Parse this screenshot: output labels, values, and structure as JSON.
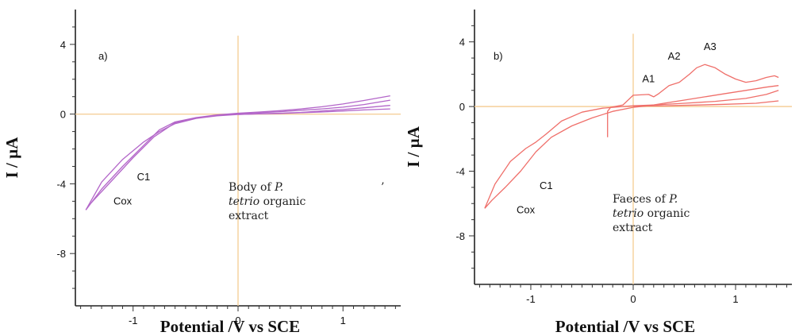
{
  "chart_data": [
    {
      "type": "line",
      "panel_label": "a)",
      "xlabel": "Potential /V vs SCE",
      "ylabel": "I / µA",
      "xlim": [
        -1.55,
        1.55
      ],
      "ylim": [
        -11,
        6
      ],
      "xticks": [
        -1,
        0,
        1
      ],
      "xtick_labels": [
        "-1",
        "0",
        "1"
      ],
      "yticks": [
        4,
        0,
        -4,
        -8
      ],
      "ytick_labels": [
        "4",
        "0",
        "-4",
        "-8"
      ],
      "crosshair_color": "#f5cf9a",
      "series_color": "#b366c9",
      "annotations": [
        {
          "text": "C1",
          "x": -0.9,
          "y": -3.8
        },
        {
          "text": "Cox",
          "x": -1.1,
          "y": -5.2
        }
      ],
      "caption": {
        "line1": "Body of ",
        "italic1": "P.",
        "italic2": "tetrio",
        "line2_rest": " organic",
        "line3": "extract"
      },
      "stray_mark": "’",
      "series": [
        {
          "x": [
            -1.45,
            -1.3,
            -1.1,
            -0.9,
            -0.75,
            -0.6,
            -0.4,
            -0.2,
            0,
            0.2,
            0.4,
            0.6,
            0.8,
            1.0,
            1.2,
            1.45
          ],
          "y": [
            -5.5,
            -4.3,
            -3.0,
            -1.8,
            -0.9,
            -0.45,
            -0.2,
            -0.05,
            0.05,
            0.12,
            0.2,
            0.3,
            0.42,
            0.58,
            0.78,
            1.05
          ]
        },
        {
          "x": [
            1.45,
            1.2,
            1.0,
            0.8,
            0.6,
            0.4,
            0.2,
            0,
            -0.2,
            -0.4,
            -0.6,
            -0.75,
            -0.9,
            -1.1,
            -1.3,
            -1.45
          ],
          "y": [
            0.5,
            0.36,
            0.26,
            0.18,
            0.1,
            0.05,
            0.02,
            -0.02,
            -0.1,
            -0.25,
            -0.55,
            -1.0,
            -1.6,
            -2.6,
            -3.9,
            -5.5
          ]
        },
        {
          "x": [
            -1.4,
            -1.2,
            -1.0,
            -0.8,
            -0.6,
            -0.4,
            -0.2,
            0,
            0.2,
            0.4,
            0.6,
            0.8,
            1.0,
            1.2,
            1.45
          ],
          "y": [
            -5.1,
            -3.8,
            -2.5,
            -1.3,
            -0.5,
            -0.22,
            -0.08,
            0.02,
            0.08,
            0.14,
            0.22,
            0.3,
            0.4,
            0.55,
            0.8
          ]
        },
        {
          "x": [
            1.45,
            1.2,
            1.0,
            0.8,
            0.6,
            0.4,
            0.2,
            0
          ],
          "y": [
            0.3,
            0.24,
            0.18,
            0.12,
            0.08,
            0.04,
            0.01,
            -0.02
          ]
        }
      ]
    },
    {
      "type": "line",
      "panel_label": "b)",
      "xlabel": "Potential /V vs SCE",
      "ylabel": "I / µA",
      "xlim": [
        -1.55,
        1.55
      ],
      "ylim": [
        -11,
        6
      ],
      "xticks": [
        -1,
        0,
        1
      ],
      "xtick_labels": [
        "-1",
        "0",
        "1"
      ],
      "yticks": [
        4,
        0,
        -4,
        -8
      ],
      "ytick_labels": [
        "4",
        "0",
        "-4",
        "-8"
      ],
      "crosshair_color": "#f5cf9a",
      "series_color": "#ef6f6a",
      "annotations": [
        {
          "text": "A1",
          "x": 0.15,
          "y": 1.5
        },
        {
          "text": "A2",
          "x": 0.4,
          "y": 2.9
        },
        {
          "text": "A3",
          "x": 0.75,
          "y": 3.5
        },
        {
          "text": "C1",
          "x": -0.85,
          "y": -5.1
        },
        {
          "text": "Cox",
          "x": -1.05,
          "y": -6.6
        }
      ],
      "caption": {
        "line1": "Faeces of ",
        "italic1": "P.",
        "italic2": "tetrio",
        "line2_rest": " organic",
        "line3": "extract"
      },
      "series": [
        {
          "x": [
            -0.25,
            -0.25,
            -0.22,
            -0.1,
            0,
            0.15,
            0.2,
            0.25,
            0.35,
            0.45,
            0.55,
            0.62,
            0.7,
            0.8,
            0.9,
            1.0,
            1.1,
            1.2,
            1.3,
            1.38,
            1.42
          ],
          "y": [
            -1.9,
            -0.3,
            -0.05,
            0.1,
            0.7,
            0.75,
            0.6,
            0.8,
            1.3,
            1.5,
            2.0,
            2.4,
            2.6,
            2.4,
            2.0,
            1.7,
            1.5,
            1.6,
            1.8,
            1.9,
            1.8
          ]
        },
        {
          "x": [
            1.42,
            1.3,
            1.1,
            0.9,
            0.7,
            0.5,
            0.3,
            0.15,
            0,
            -0.2,
            -0.4,
            -0.6,
            -0.8,
            -0.95,
            -1.1,
            -1.25,
            -1.38,
            -1.45
          ],
          "y": [
            1.3,
            1.2,
            1.0,
            0.8,
            0.6,
            0.4,
            0.2,
            0.05,
            -0.05,
            -0.3,
            -0.7,
            -1.2,
            -1.9,
            -2.8,
            -4.0,
            -5.0,
            -5.8,
            -6.3
          ]
        },
        {
          "x": [
            -1.45,
            -1.35,
            -1.2,
            -1.05,
            -0.95,
            -0.85,
            -0.7,
            -0.5,
            -0.3,
            -0.1,
            0,
            0.2,
            0.5,
            0.8,
            1.1,
            1.3,
            1.42
          ],
          "y": [
            -6.3,
            -4.8,
            -3.4,
            -2.6,
            -2.2,
            -1.7,
            -0.9,
            -0.35,
            -0.1,
            0.0,
            0.05,
            0.1,
            0.2,
            0.32,
            0.5,
            0.75,
            1.0
          ]
        },
        {
          "x": [
            0,
            0.3,
            0.6,
            0.9,
            1.2,
            1.42
          ],
          "y": [
            0.02,
            0.05,
            0.09,
            0.14,
            0.2,
            0.35
          ]
        }
      ]
    }
  ]
}
